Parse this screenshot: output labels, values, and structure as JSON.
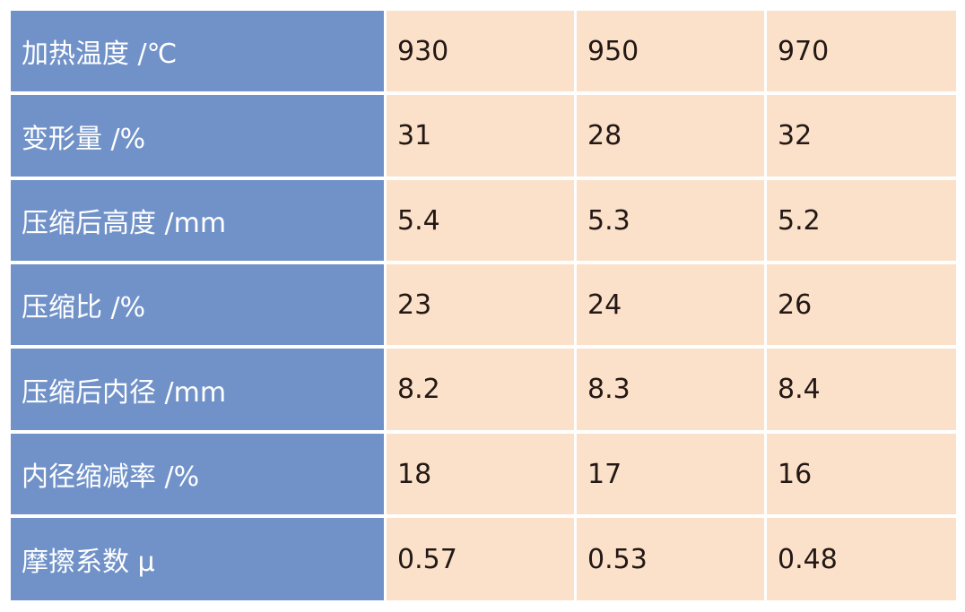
{
  "table": {
    "rows": [
      [
        "加热温度 /℃",
        "930",
        "950",
        "970"
      ],
      [
        "变形量 /%",
        "31",
        "28",
        "32"
      ],
      [
        "压缩后高度 /mm",
        "5.4",
        "5.3",
        "5.2"
      ],
      [
        "压缩比 /%",
        "23",
        "24",
        "26"
      ],
      [
        "压缩后内径 /mm",
        "8.2",
        "8.3",
        "8.4"
      ],
      [
        "内径缩减率 /%",
        "18",
        "17",
        "16"
      ],
      [
        "摩擦系数 μ",
        "0.57",
        "0.53",
        "0.48"
      ]
    ]
  }
}
